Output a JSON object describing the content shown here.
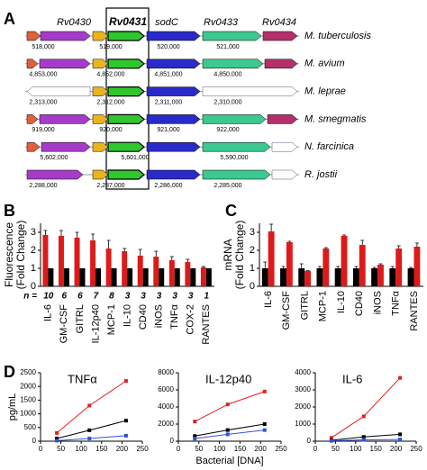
{
  "panel_labels": [
    "A",
    "B",
    "C",
    "D"
  ],
  "gene_map": {
    "genes": [
      "Rv0430",
      "Rv0431",
      "sodC",
      "Rv0433",
      "Rv0434"
    ],
    "organisms": [
      {
        "name": "M. tuberculosis",
        "coords": [
          "518,000",
          "519,000",
          "520,000",
          "521,000"
        ]
      },
      {
        "name": "M. avium",
        "coords": [
          "4,853,000",
          "4,852,000",
          "4,851,000",
          "4,850,000"
        ]
      },
      {
        "name": "M. leprae",
        "coords": [
          "2,313,000",
          "2,312,000",
          "2,311,000",
          "2,310,000"
        ]
      },
      {
        "name": "M. smegmatis",
        "coords": [
          "919,000",
          "920,000",
          "921,000",
          "922,000"
        ]
      },
      {
        "name": "N. farcinica",
        "coords": [
          "5,602,000",
          "5,601,000",
          "5,590,000"
        ]
      },
      {
        "name": "R. jostii",
        "coords": [
          "2,288,000",
          "2,287,000",
          "2,286,000",
          "2,285,000"
        ]
      }
    ]
  },
  "chart_data": [
    {
      "type": "bar",
      "ylabel": [
        "Fluorescence",
        "(Fold Change)"
      ],
      "categories": [
        "IL-6",
        "GM-CSF",
        "GITRL",
        "IL-12p40",
        "MCP-1",
        "IL-10",
        "CD40",
        "iNOS",
        "TNFα",
        "COX-2",
        "RANTES"
      ],
      "n_label": "n =",
      "n_values": [
        10,
        6,
        6,
        7,
        8,
        3,
        3,
        3,
        3,
        3,
        1
      ],
      "series": [
        {
          "color": "#dd1a1a",
          "values": [
            2.85,
            2.8,
            2.7,
            2.55,
            2.1,
            1.95,
            1.7,
            1.65,
            1.45,
            1.35,
            1.05
          ],
          "errors": [
            0.25,
            0.3,
            0.3,
            0.35,
            0.45,
            0.15,
            0.35,
            0.3,
            0.2,
            0.15,
            0.05
          ]
        },
        {
          "color": "#000000",
          "values": [
            1,
            1,
            1,
            1,
            1,
            1,
            1,
            1,
            1,
            1,
            1
          ]
        }
      ],
      "ylim": [
        0,
        3.5
      ],
      "yticks": [
        0,
        1,
        2,
        3
      ]
    },
    {
      "type": "bar",
      "ylabel": [
        "mRNA",
        "(Fold Change)"
      ],
      "categories": [
        "IL-6",
        "GM-CSF",
        "GITRL",
        "MCP-1",
        "IL-10",
        "CD40",
        "iNOS",
        "TNFα",
        "RANTES"
      ],
      "series": [
        {
          "color": "#000000",
          "values": [
            1,
            1,
            1,
            1,
            1,
            1,
            1,
            1,
            1
          ],
          "errors": [
            0.35,
            0.1,
            0.25,
            0.1,
            0.1,
            0.1,
            0.05,
            0.1,
            0.05
          ]
        },
        {
          "color": "#dd1a1a",
          "values": [
            3.05,
            2.45,
            0.85,
            2.1,
            2.8,
            2.3,
            1.2,
            2.1,
            2.2
          ],
          "errors": [
            0.4,
            0.05,
            0.02,
            0.05,
            0.05,
            0.25,
            0.05,
            0.15,
            0.2
          ]
        }
      ],
      "ylim": [
        0,
        3.5
      ],
      "yticks": [
        0,
        1,
        2,
        3
      ]
    },
    {
      "type": "line",
      "title": "TNFα",
      "ylabel": "pg/mL",
      "x": [
        40,
        120,
        210
      ],
      "series": [
        {
          "color": "#e02020",
          "values": [
            300,
            1300,
            2200
          ]
        },
        {
          "color": "#000000",
          "values": [
            100,
            400,
            750
          ]
        },
        {
          "color": "#3050e0",
          "values": [
            20,
            100,
            200
          ]
        }
      ],
      "xlim": [
        0,
        250
      ],
      "xticks": [
        0,
        50,
        100,
        150,
        200,
        250
      ],
      "ylim": [
        0,
        2500
      ],
      "yticks": [
        0,
        500,
        1000,
        1500,
        2000,
        2500
      ]
    },
    {
      "type": "line",
      "title": "IL-12p40",
      "xlabel": "Bacterial [DNA]",
      "x": [
        40,
        120,
        210
      ],
      "series": [
        {
          "color": "#e02020",
          "values": [
            2300,
            4300,
            5800
          ]
        },
        {
          "color": "#000000",
          "values": [
            600,
            1300,
            2000
          ]
        },
        {
          "color": "#3050e0",
          "values": [
            300,
            800,
            1300
          ]
        }
      ],
      "xlim": [
        0,
        250
      ],
      "xticks": [
        0,
        50,
        100,
        150,
        200,
        250
      ],
      "ylim": [
        0,
        8000
      ],
      "yticks": [
        0,
        2000,
        4000,
        6000,
        8000
      ]
    },
    {
      "type": "line",
      "title": "IL-6",
      "x": [
        40,
        120,
        210
      ],
      "series": [
        {
          "color": "#e02020",
          "values": [
            200,
            1450,
            3700
          ]
        },
        {
          "color": "#000000",
          "values": [
            50,
            250,
            400
          ]
        },
        {
          "color": "#3050e0",
          "values": [
            20,
            80,
            100
          ]
        }
      ],
      "xlim": [
        0,
        250
      ],
      "xticks": [
        0,
        50,
        100,
        150,
        200,
        250
      ],
      "ylim": [
        0,
        4000
      ],
      "yticks": [
        0,
        1000,
        2000,
        3000,
        4000
      ]
    }
  ]
}
